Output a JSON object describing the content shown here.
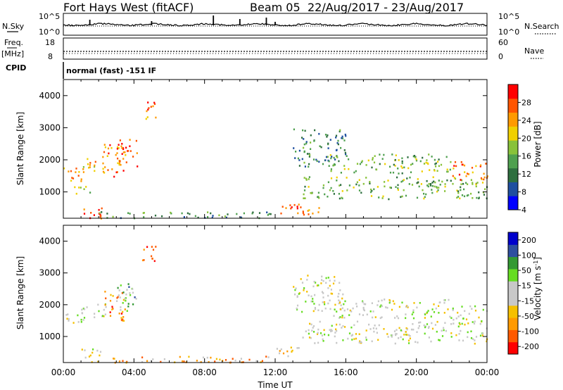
{
  "title": {
    "station": "Fort Hays West (fitACF)",
    "beam": "Beam 05",
    "dates": "22/Aug/2017 - 23/Aug/2017"
  },
  "status_panels": {
    "nsky": {
      "label": "N.Sky",
      "ticks": [
        "10^5",
        "10^0"
      ]
    },
    "nsearch": {
      "label": "N.Search",
      "ticks": [
        "10^5",
        "10^0"
      ]
    },
    "freq": {
      "label": "Freq.",
      "unit": "[MHz]",
      "ticks": [
        "18",
        "8"
      ]
    },
    "nave": {
      "label": "Nave",
      "ticks": [
        "60",
        "0"
      ]
    },
    "cpid": {
      "label": "CPID",
      "value": "normal (fast) -151 IF"
    }
  },
  "chart_data": [
    {
      "type": "heatmap",
      "name": "Power",
      "xlabel": "",
      "ylabel": "Slant Range [km]",
      "x_ticks": [
        "00:00",
        "04:00",
        "08:00",
        "12:00",
        "16:00",
        "20:00",
        "00:00"
      ],
      "xlim_hours": [
        0,
        24
      ],
      "y_ticks": [
        1000,
        2000,
        3000,
        4000
      ],
      "ylim": [
        180,
        4500
      ],
      "colorbar": {
        "label": "Power [dB]",
        "ticks": [
          "28",
          "24",
          "20",
          "16",
          "12",
          "8",
          "4"
        ],
        "range": [
          0,
          30
        ],
        "colors": [
          "#0000ff",
          "#1f4fa0",
          "#2e6f3f",
          "#4fa04f",
          "#88c23a",
          "#f0d000",
          "#ff9a00",
          "#ff5500",
          "#ff0000"
        ]
      },
      "regions": [
        {
          "t0": 0.0,
          "t1": 1.2,
          "r0": 1300,
          "r1": 1800,
          "c": 0.72
        },
        {
          "t0": 1.0,
          "t1": 2.4,
          "r0": 1600,
          "r1": 2100,
          "c": 0.65
        },
        {
          "t0": 2.2,
          "t1": 3.5,
          "r0": 1500,
          "r1": 2500,
          "c": 0.78
        },
        {
          "t0": 3.0,
          "t1": 4.2,
          "r0": 1800,
          "r1": 2700,
          "c": 0.8
        },
        {
          "t0": 4.4,
          "t1": 5.2,
          "r0": 3300,
          "r1": 3900,
          "c": 0.75
        },
        {
          "t0": 0.5,
          "t1": 1.5,
          "r0": 900,
          "r1": 1200,
          "c": 0.5
        },
        {
          "t0": 1.0,
          "t1": 2.2,
          "r0": 200,
          "r1": 650,
          "c": 0.9
        },
        {
          "t0": 2.0,
          "t1": 12.0,
          "r0": 200,
          "r1": 400,
          "c": 0.35
        },
        {
          "t0": 12.0,
          "t1": 13.5,
          "r0": 350,
          "r1": 700,
          "c": 0.85
        },
        {
          "t0": 13.4,
          "t1": 14.6,
          "r0": 300,
          "r1": 650,
          "c": 0.8
        },
        {
          "t0": 13.5,
          "t1": 24.0,
          "r0": 800,
          "r1": 1500,
          "c": 0.45
        },
        {
          "t0": 15.0,
          "t1": 22.0,
          "r0": 1600,
          "r1": 2200,
          "c": 0.45
        },
        {
          "t0": 22.0,
          "t1": 24.0,
          "r0": 1400,
          "r1": 2000,
          "c": 0.75
        },
        {
          "t0": 13.0,
          "t1": 16.0,
          "r0": 1800,
          "r1": 3000,
          "c": 0.3
        }
      ]
    },
    {
      "type": "heatmap",
      "name": "Velocity",
      "xlabel": "Time UT",
      "ylabel": "Slant Range [km]",
      "x_ticks": [
        "00:00",
        "04:00",
        "08:00",
        "12:00",
        "16:00",
        "20:00",
        "00:00"
      ],
      "xlim_hours": [
        0,
        24
      ],
      "y_ticks": [
        1000,
        2000,
        3000,
        4000
      ],
      "ylim": [
        180,
        4500
      ],
      "colorbar": {
        "label": "Velocity [m s^-1]",
        "ticks": [
          "200",
          "100",
          "50",
          "15",
          "-15",
          "-50",
          "-100",
          "-200"
        ],
        "range": [
          -250,
          250
        ],
        "colors": [
          "#ff0000",
          "#ff5a00",
          "#ff9a00",
          "#f5c000",
          "#c8c8c8",
          "#c8c8c8",
          "#66dd22",
          "#339933",
          "#2e4fa0",
          "#0000cc"
        ]
      },
      "regions": [
        {
          "t0": 0.0,
          "t1": 1.2,
          "r0": 1300,
          "r1": 1800,
          "c": 0.5
        },
        {
          "t0": 1.0,
          "t1": 2.4,
          "r0": 1600,
          "r1": 2100,
          "c": 0.5
        },
        {
          "t0": 2.2,
          "t1": 3.5,
          "r0": 1500,
          "r1": 2500,
          "c": 0.25
        },
        {
          "t0": 3.0,
          "t1": 4.2,
          "r0": 1800,
          "r1": 2700,
          "c": 0.65
        },
        {
          "t0": 4.4,
          "t1": 5.2,
          "r0": 3300,
          "r1": 3900,
          "c": 0.12
        },
        {
          "t0": 1.0,
          "t1": 2.2,
          "r0": 200,
          "r1": 650,
          "c": 0.5
        },
        {
          "t0": 2.0,
          "t1": 12.0,
          "r0": 200,
          "r1": 400,
          "c": 0.3
        },
        {
          "t0": 12.0,
          "t1": 13.5,
          "r0": 350,
          "r1": 700,
          "c": 0.35
        },
        {
          "t0": 13.5,
          "t1": 24.0,
          "r0": 800,
          "r1": 1500,
          "c": 0.5
        },
        {
          "t0": 15.0,
          "t1": 22.0,
          "r0": 1600,
          "r1": 2200,
          "c": 0.5
        },
        {
          "t0": 22.0,
          "t1": 24.0,
          "r0": 1400,
          "r1": 2000,
          "c": 0.5
        },
        {
          "t0": 13.0,
          "t1": 16.0,
          "r0": 1800,
          "r1": 3000,
          "c": 0.5
        }
      ]
    }
  ]
}
